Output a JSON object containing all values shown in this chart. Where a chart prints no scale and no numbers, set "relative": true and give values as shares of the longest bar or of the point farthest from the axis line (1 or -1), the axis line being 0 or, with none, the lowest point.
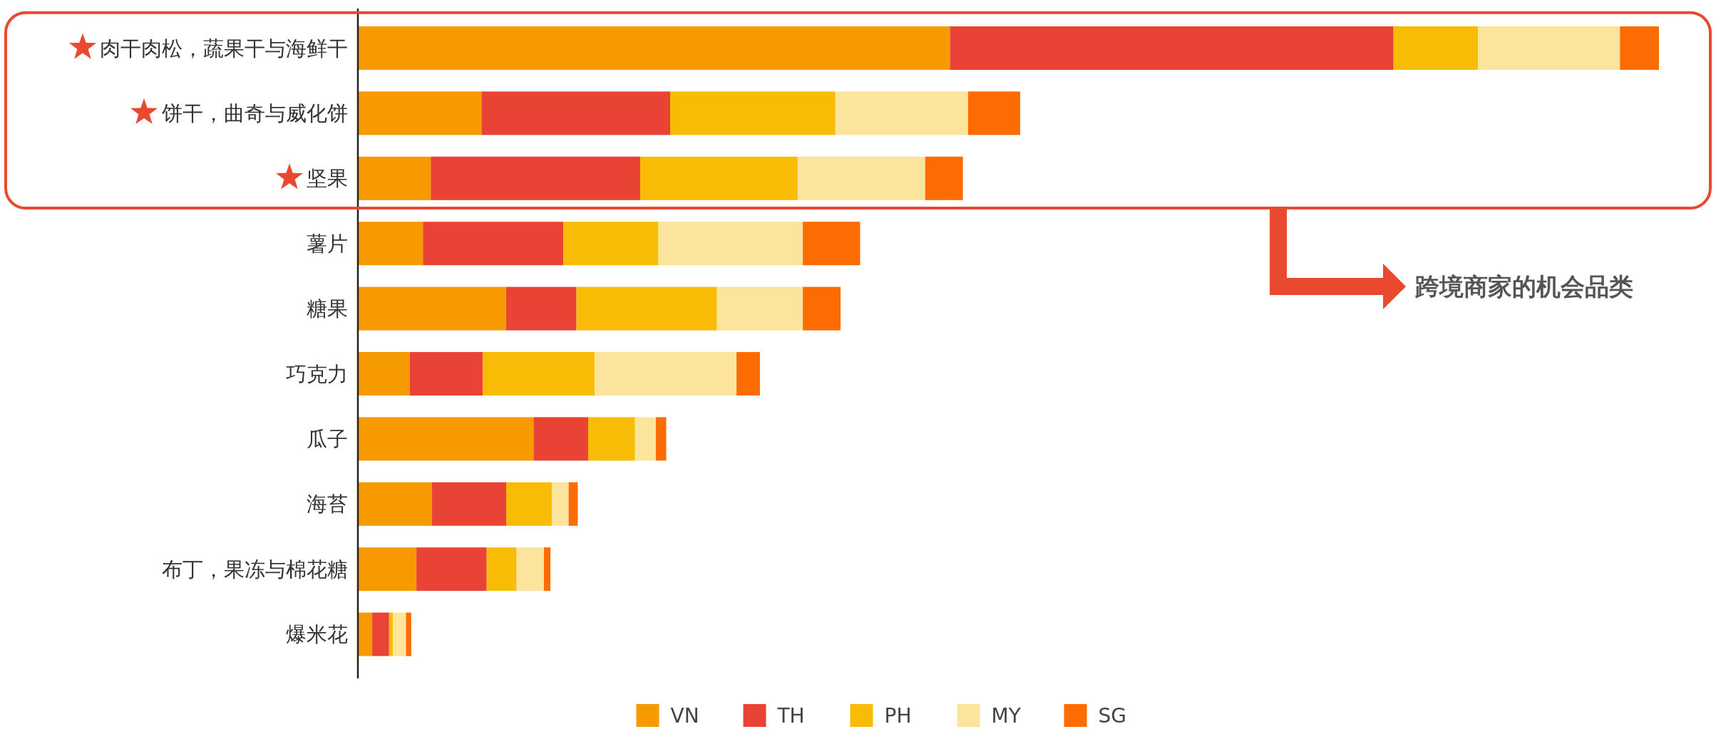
{
  "chart_data": {
    "type": "bar",
    "orientation": "horizontal",
    "stacked": true,
    "relative": true,
    "legend": "bottom",
    "categories": [
      "肉干肉松，蔬果干与海鲜干",
      "饼干，曲奇与威化饼",
      "坚果",
      "薯片",
      "糖果",
      "巧克力",
      "瓜子",
      "海苔",
      "布丁，果冻与棉花糖",
      "爆米花"
    ],
    "series": [
      {
        "name": "VN",
        "color": "#f79a00",
        "values": [
          0.455,
          0.095,
          0.056,
          0.05,
          0.114,
          0.04,
          0.135,
          0.057,
          0.045,
          0.011
        ]
      },
      {
        "name": "TH",
        "color": "#e84335",
        "values": [
          0.341,
          0.145,
          0.161,
          0.108,
          0.054,
          0.056,
          0.042,
          0.057,
          0.054,
          0.013
        ]
      },
      {
        "name": "PH",
        "color": "#f9bc06",
        "values": [
          0.065,
          0.127,
          0.121,
          0.073,
          0.108,
          0.086,
          0.036,
          0.035,
          0.023,
          0.003
        ]
      },
      {
        "name": "MY",
        "color": "#fde49c",
        "values": [
          0.109,
          0.102,
          0.098,
          0.111,
          0.066,
          0.109,
          0.016,
          0.013,
          0.021,
          0.01
        ]
      },
      {
        "name": "SG",
        "color": "#fd6c02",
        "values": [
          0.03,
          0.04,
          0.029,
          0.044,
          0.029,
          0.018,
          0.008,
          0.007,
          0.005,
          0.004
        ]
      }
    ],
    "annotations": [
      "跨境商家的机会品类"
    ]
  }
}
